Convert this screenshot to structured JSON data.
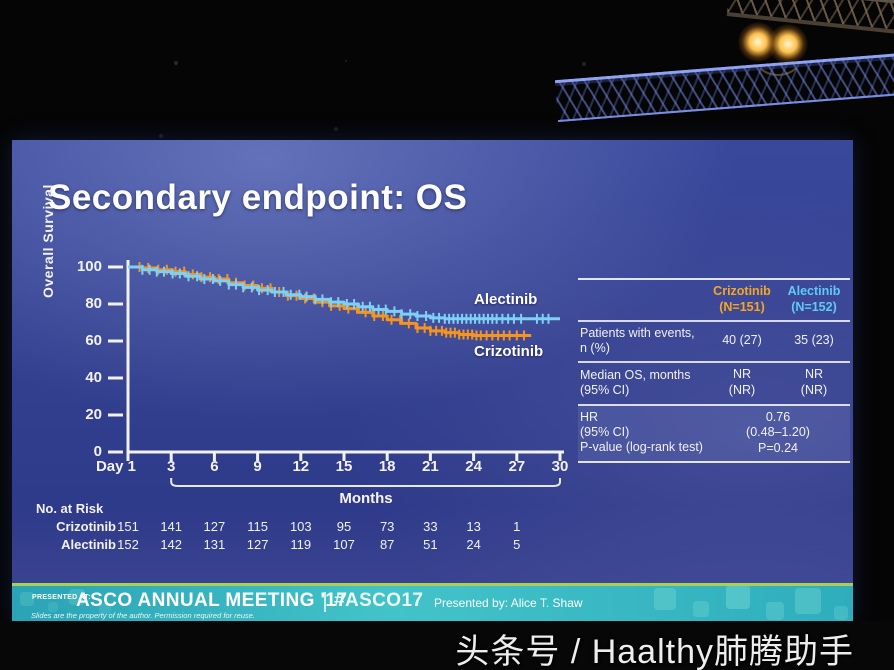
{
  "slide": {
    "title": "Secondary endpoint: OS"
  },
  "chart_data": {
    "type": "line",
    "subtype": "kaplan-meier-step",
    "title": "Secondary endpoint: OS",
    "ylabel": "Overall Survival",
    "xlabel": "Months",
    "xlim": [
      0,
      30
    ],
    "ylim": [
      0,
      100
    ],
    "x_tick_months": [
      0,
      3,
      6,
      9,
      12,
      15,
      18,
      21,
      24,
      27,
      30
    ],
    "x_tick_labels": [
      "Day 1",
      "3",
      "6",
      "9",
      "12",
      "15",
      "18",
      "21",
      "24",
      "27",
      "30"
    ],
    "y_ticks": [
      100,
      80,
      60,
      40,
      20,
      0
    ],
    "series": [
      {
        "name": "Alectinib",
        "color": "#7fd0f5",
        "months": [
          0,
          1,
          2,
          3,
          4,
          5,
          6,
          7,
          8,
          9,
          10,
          11,
          12,
          13,
          14,
          15,
          16,
          17,
          18,
          19,
          20,
          21,
          22,
          23,
          24,
          25,
          26,
          27,
          28,
          29,
          30
        ],
        "values": [
          100,
          98.5,
          97.5,
          96.5,
          95,
          93.5,
          92.5,
          90.5,
          89,
          87.5,
          86.5,
          85,
          84,
          82.5,
          81,
          80,
          78.5,
          77,
          76,
          74.5,
          73.5,
          72.5,
          72,
          72,
          72,
          72,
          72,
          72,
          72,
          72,
          72
        ],
        "censor_months": [
          1.0,
          1.5,
          2.0,
          2.5,
          3.1,
          3.6,
          4.2,
          4.8,
          5.3,
          5.9,
          6.4,
          7.0,
          7.5,
          8.0,
          8.6,
          9.1,
          9.7,
          10.2,
          10.8,
          11.3,
          11.9,
          12.4,
          13.0,
          13.5,
          14.1,
          14.6,
          15.2,
          15.7,
          16.3,
          16.8,
          17.4,
          17.9,
          18.5,
          19.0,
          19.6,
          20.1,
          20.7,
          21.2,
          21.6,
          22.0,
          22.3,
          22.6,
          22.9,
          23.2,
          23.5,
          23.8,
          24.1,
          24.4,
          24.7,
          25.0,
          25.3,
          25.6,
          26.0,
          26.4,
          26.8,
          27.3,
          28.4,
          28.8,
          29.2
        ]
      },
      {
        "name": "Crizotinib",
        "color": "#f5941f",
        "months": [
          0,
          1,
          2,
          3,
          4,
          5,
          6,
          7,
          8,
          9,
          10,
          11,
          12,
          13,
          14,
          15,
          16,
          17,
          18,
          19,
          20,
          21,
          22,
          23,
          24,
          25,
          26,
          27,
          28
        ],
        "values": [
          100,
          99.5,
          98.5,
          97.5,
          96,
          94.5,
          93.5,
          91.5,
          90,
          88.5,
          86.5,
          84.5,
          83,
          81,
          79,
          77.5,
          75.5,
          73.5,
          71.5,
          69.5,
          67,
          65.5,
          64.5,
          63.5,
          63,
          63,
          63,
          63,
          63
        ],
        "censor_months": [
          0.8,
          1.4,
          2.1,
          2.7,
          3.3,
          3.9,
          4.5,
          5.1,
          5.7,
          6.3,
          6.9,
          7.5,
          8.1,
          8.7,
          9.3,
          9.9,
          10.5,
          11.1,
          11.7,
          12.3,
          12.9,
          13.5,
          14.1,
          14.7,
          15.3,
          15.9,
          16.5,
          17.1,
          17.7,
          18.3,
          18.9,
          19.5,
          20.1,
          20.6,
          21.0,
          21.4,
          21.8,
          22.1,
          22.4,
          22.7,
          23.0,
          23.3,
          23.6,
          23.9,
          24.2,
          24.5,
          24.9,
          25.3,
          25.7,
          26.1,
          26.5,
          27.0,
          27.5
        ]
      }
    ]
  },
  "risk_table": {
    "title": "No. at Risk",
    "value_months": [
      0,
      3,
      6,
      9,
      12,
      15,
      18,
      21,
      24,
      27
    ],
    "rows": [
      {
        "name": "Crizotinib",
        "values": [
          "151",
          "141",
          "127",
          "115",
          "103",
          "95",
          "73",
          "33",
          "13",
          "1"
        ]
      },
      {
        "name": "Alectinib",
        "values": [
          "152",
          "142",
          "131",
          "127",
          "119",
          "107",
          "87",
          "51",
          "24",
          "5"
        ]
      }
    ]
  },
  "stats_table": {
    "col_headers": [
      {
        "name": "Crizotinib",
        "n": "(N=151)",
        "color": "#f5a623"
      },
      {
        "name": "Alectinib",
        "n": "(N=152)",
        "color": "#5fcbf5"
      }
    ],
    "rows": [
      {
        "label": "Patients with events,\nn (%)",
        "crizotinib": "40 (27)",
        "alectinib": "35 (23)"
      },
      {
        "label": "Median OS, months\n(95% CI)",
        "crizotinib": "NR\n(NR)",
        "alectinib": "NR\n(NR)"
      },
      {
        "label": "HR\n(95% CI)\nP-value (log-rank test)",
        "combined": "0.76\n(0.48–1.20)\nP=0.24"
      }
    ]
  },
  "footer": {
    "presented_at": "PRESENTED AT:",
    "meeting": "ASCO ANNUAL MEETING '17",
    "hashtag": "#ASCO17",
    "presented_by": "Presented by:  Alice T. Shaw",
    "disclaimer": "Slides are the property of the author. Permission required for reuse."
  },
  "watermark": "头条号 / Haalthy肺腾助手"
}
